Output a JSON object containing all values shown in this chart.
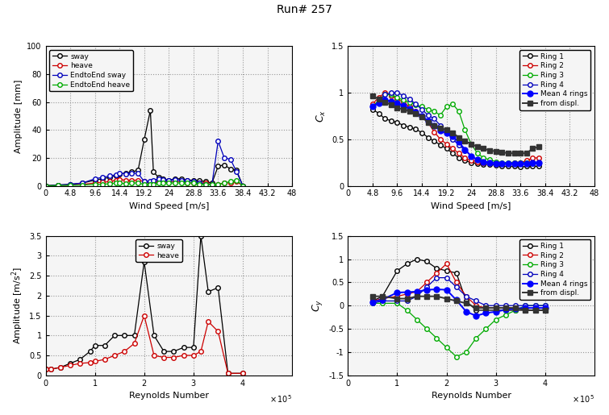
{
  "title": "Run# 257",
  "bg_color": "#f0f0f0",
  "tl": {
    "xlabel": "Wind Speed [m/s]",
    "ylabel": "Amplitude [mm]",
    "xlim": [
      0,
      48
    ],
    "ylim": [
      0,
      100
    ],
    "xticks": [
      0,
      4.8,
      9.6,
      14.4,
      19.2,
      24,
      28.8,
      33.6,
      38.4,
      43.2,
      48
    ],
    "yticks": [
      0,
      20,
      40,
      60,
      80,
      100
    ],
    "sway_ws": [
      0,
      2.4,
      4.8,
      7.2,
      9.6,
      11.0,
      12.5,
      13.8,
      14.4,
      15.6,
      16.8,
      18.0,
      19.2,
      20.4,
      21.0,
      22.0,
      22.8,
      24.0,
      25.2,
      26.4,
      27.6,
      28.8,
      30.0,
      31.2,
      32.4,
      33.6,
      34.8,
      36.0,
      37.2,
      38.4
    ],
    "sway_amp": [
      0,
      0.5,
      1.0,
      2.0,
      4.0,
      5.0,
      6.0,
      7.5,
      8.5,
      9.0,
      10.0,
      11.0,
      33.0,
      54.0,
      10.0,
      6.0,
      5.0,
      4.0,
      5.0,
      5.0,
      4.0,
      4.0,
      3.5,
      3.0,
      2.0,
      14.0,
      15.0,
      12.0,
      11.0,
      0
    ],
    "heave_ws": [
      0,
      2.4,
      4.8,
      7.2,
      9.6,
      11.0,
      12.5,
      13.8,
      14.4,
      15.6,
      16.8,
      18.0,
      19.2,
      20.4,
      21.0,
      22.0,
      22.8,
      24.0,
      25.2,
      26.4,
      27.6,
      28.8,
      30.0,
      31.2,
      32.4,
      33.6,
      34.8,
      36.0,
      37.2,
      38.4
    ],
    "heave_amp": [
      0,
      0.3,
      0.5,
      1.0,
      2.0,
      2.5,
      3.0,
      4.0,
      4.5,
      4.0,
      4.0,
      4.0,
      3.0,
      2.0,
      2.0,
      3.0,
      3.0,
      3.0,
      3.0,
      3.0,
      2.0,
      2.0,
      2.0,
      2.0,
      1.0,
      1.0,
      2.0,
      2.0,
      3.0,
      0
    ],
    "ete_sway_ws": [
      0,
      2.4,
      4.8,
      7.2,
      9.6,
      11.0,
      12.5,
      13.8,
      14.4,
      15.6,
      16.8,
      18.0,
      19.2,
      20.4,
      21.0,
      22.0,
      22.8,
      24.0,
      25.2,
      26.4,
      27.6,
      28.8,
      30.0,
      31.2,
      32.4,
      33.6,
      34.8,
      36.0,
      37.2,
      38.4
    ],
    "ete_sway_amp": [
      0,
      0.5,
      1.0,
      2.0,
      5.0,
      6.0,
      7.0,
      8.0,
      9.0,
      8.5,
      9.0,
      9.0,
      3.0,
      3.0,
      4.0,
      5.0,
      4.5,
      4.0,
      4.5,
      4.0,
      4.0,
      3.0,
      2.0,
      1.0,
      1.0,
      32.0,
      20.0,
      19.0,
      10.0,
      0
    ],
    "ete_heave_ws": [
      0,
      2.4,
      4.8,
      7.2,
      9.6,
      11.0,
      12.5,
      13.8,
      14.4,
      15.6,
      16.8,
      18.0,
      19.2,
      20.4,
      21.0,
      22.0,
      22.8,
      24.0,
      25.2,
      26.4,
      27.6,
      28.8,
      30.0,
      31.2,
      32.4,
      33.6,
      34.8,
      36.0,
      37.2,
      38.4
    ],
    "ete_heave_amp": [
      0,
      0.2,
      0.3,
      0.5,
      1.0,
      1.0,
      1.5,
      2.0,
      2.0,
      1.5,
      2.0,
      2.0,
      1.0,
      1.0,
      1.0,
      2.0,
      2.0,
      2.0,
      2.0,
      2.0,
      2.0,
      2.0,
      1.0,
      1.0,
      1.0,
      1.0,
      2.0,
      3.0,
      4.0,
      0
    ]
  },
  "tr": {
    "xlabel": "Wind Speed [m/s]",
    "ylabel": "C_x",
    "xlim": [
      0,
      48
    ],
    "ylim": [
      0,
      1.5
    ],
    "xticks": [
      0,
      4.8,
      9.6,
      14.4,
      19.2,
      24,
      28.8,
      33.6,
      38.4,
      43.2,
      48
    ],
    "yticks": [
      0,
      0.5,
      1.0,
      1.5
    ],
    "ws": [
      4.8,
      6.0,
      7.2,
      8.4,
      9.6,
      10.8,
      12.0,
      13.2,
      14.4,
      15.6,
      16.8,
      18.0,
      19.2,
      20.4,
      21.6,
      22.8,
      24.0,
      25.2,
      26.4,
      27.6,
      28.8,
      30.0,
      31.2,
      32.4,
      33.6,
      34.8,
      36.0,
      37.2
    ],
    "ring1": [
      0.82,
      0.78,
      0.72,
      0.7,
      0.68,
      0.65,
      0.63,
      0.61,
      0.57,
      0.52,
      0.48,
      0.44,
      0.4,
      0.35,
      0.3,
      0.27,
      0.25,
      0.24,
      0.23,
      0.23,
      0.22,
      0.21,
      0.21,
      0.21,
      0.2,
      0.21,
      0.21,
      0.21
    ],
    "ring2": [
      0.88,
      0.95,
      1.0,
      0.97,
      0.93,
      0.9,
      0.85,
      0.8,
      0.75,
      0.68,
      0.58,
      0.5,
      0.45,
      0.4,
      0.35,
      0.3,
      0.27,
      0.26,
      0.25,
      0.25,
      0.24,
      0.24,
      0.24,
      0.25,
      0.25,
      0.27,
      0.3,
      0.3
    ],
    "ring3": [
      0.85,
      0.92,
      0.98,
      0.98,
      0.95,
      0.92,
      0.9,
      0.87,
      0.85,
      0.82,
      0.8,
      0.76,
      0.85,
      0.88,
      0.8,
      0.6,
      0.45,
      0.35,
      0.3,
      0.28,
      0.26,
      0.25,
      0.25,
      0.25,
      0.25,
      0.25,
      0.25,
      0.25
    ],
    "ring4": [
      0.85,
      0.9,
      0.98,
      1.0,
      1.0,
      0.97,
      0.93,
      0.88,
      0.82,
      0.76,
      0.72,
      0.65,
      0.58,
      0.5,
      0.44,
      0.38,
      0.32,
      0.28,
      0.26,
      0.25,
      0.24,
      0.24,
      0.24,
      0.24,
      0.24,
      0.24,
      0.24,
      0.24
    ],
    "mean": [
      0.85,
      0.89,
      0.92,
      0.91,
      0.89,
      0.86,
      0.83,
      0.79,
      0.75,
      0.7,
      0.65,
      0.59,
      0.57,
      0.53,
      0.47,
      0.39,
      0.32,
      0.28,
      0.26,
      0.25,
      0.24,
      0.24,
      0.24,
      0.24,
      0.24,
      0.24,
      0.25,
      0.25
    ],
    "displ_ws": [
      4.8,
      6.0,
      7.2,
      8.4,
      9.6,
      10.8,
      12.0,
      13.2,
      14.4,
      15.6,
      16.8,
      18.0,
      19.2,
      20.4,
      21.6,
      22.8,
      24.0,
      25.2,
      26.4,
      27.6,
      28.8,
      30.0,
      31.2,
      32.4,
      33.6,
      34.8,
      36.0,
      37.2
    ],
    "displ": [
      0.97,
      0.93,
      0.9,
      0.87,
      0.84,
      0.82,
      0.8,
      0.78,
      0.74,
      0.68,
      0.65,
      0.62,
      0.6,
      0.57,
      0.52,
      0.48,
      0.45,
      0.42,
      0.4,
      0.38,
      0.37,
      0.36,
      0.35,
      0.35,
      0.35,
      0.35,
      0.4,
      0.42
    ]
  },
  "bl": {
    "xlabel": "Reynolds Number",
    "ylabel": "Amplitude [m/s^2]",
    "xlim": [
      0,
      500000.0
    ],
    "ylim": [
      0,
      3.5
    ],
    "xticks": [
      0,
      100000.0,
      200000.0,
      300000.0,
      400000.0
    ],
    "yticks": [
      0,
      0.5,
      1.0,
      1.5,
      2.0,
      2.5,
      3.0,
      3.5
    ],
    "sway_re": [
      0,
      10000.0,
      30000.0,
      50000.0,
      70000.0,
      90000.0,
      100000.0,
      120000.0,
      140000.0,
      160000.0,
      180000.0,
      200000.0,
      220000.0,
      240000.0,
      260000.0,
      280000.0,
      300000.0,
      315000.0,
      330000.0,
      350000.0,
      370000.0,
      400000.0
    ],
    "sway_acc": [
      0.15,
      0.15,
      0.2,
      0.3,
      0.4,
      0.6,
      0.75,
      0.75,
      1.0,
      1.0,
      1.0,
      2.85,
      1.0,
      0.6,
      0.6,
      0.7,
      0.7,
      3.5,
      2.1,
      2.2,
      0.05,
      0.05
    ],
    "heave_re": [
      0,
      10000.0,
      30000.0,
      50000.0,
      70000.0,
      90000.0,
      100000.0,
      120000.0,
      140000.0,
      160000.0,
      180000.0,
      200000.0,
      220000.0,
      240000.0,
      260000.0,
      280000.0,
      300000.0,
      315000.0,
      330000.0,
      350000.0,
      370000.0,
      400000.0
    ],
    "heave_acc": [
      0.15,
      0.15,
      0.2,
      0.25,
      0.3,
      0.32,
      0.35,
      0.4,
      0.5,
      0.6,
      0.8,
      1.5,
      0.5,
      0.45,
      0.45,
      0.5,
      0.5,
      0.6,
      1.35,
      1.1,
      0.05,
      0.05
    ]
  },
  "br": {
    "xlabel": "Reynolds Number",
    "ylabel": "C_y",
    "xlim": [
      0,
      500000.0
    ],
    "ylim": [
      -1.5,
      1.5
    ],
    "xticks": [
      0,
      100000.0,
      200000.0,
      300000.0,
      400000.0
    ],
    "yticks": [
      -1.5,
      -1.0,
      -0.5,
      0,
      0.5,
      1.0,
      1.5
    ],
    "re": [
      50000.0,
      70000.0,
      100000.0,
      120000.0,
      140000.0,
      160000.0,
      180000.0,
      200000.0,
      220000.0,
      240000.0,
      260000.0,
      280000.0,
      300000.0,
      320000.0,
      340000.0,
      360000.0,
      380000.0,
      400000.0
    ],
    "ring1": [
      0.1,
      0.2,
      0.75,
      0.9,
      1.0,
      0.95,
      0.8,
      0.75,
      0.7,
      0.1,
      -0.1,
      -0.1,
      -0.1,
      -0.1,
      -0.1,
      -0.1,
      -0.1,
      -0.1
    ],
    "ring2": [
      0.1,
      0.15,
      0.2,
      0.25,
      0.3,
      0.5,
      0.7,
      0.9,
      0.5,
      0.2,
      0.0,
      -0.05,
      -0.05,
      -0.05,
      -0.05,
      -0.1,
      -0.1,
      -0.1
    ],
    "ring3": [
      0.05,
      0.05,
      0.05,
      -0.1,
      -0.3,
      -0.5,
      -0.7,
      -0.9,
      -1.1,
      -1.0,
      -0.7,
      -0.5,
      -0.3,
      -0.2,
      -0.1,
      0.0,
      0.0,
      0.0
    ],
    "ring4": [
      0.05,
      0.1,
      0.1,
      0.1,
      0.2,
      0.4,
      0.6,
      0.6,
      0.4,
      0.2,
      0.1,
      0.0,
      0.0,
      0.0,
      0.0,
      0.0,
      0.0,
      0.0
    ],
    "mean": [
      0.08,
      0.13,
      0.28,
      0.29,
      0.3,
      0.34,
      0.35,
      0.34,
      0.12,
      -0.13,
      -0.22,
      -0.16,
      -0.13,
      -0.09,
      -0.06,
      -0.05,
      -0.05,
      -0.05
    ],
    "displ_re": [
      50000.0,
      70000.0,
      100000.0,
      120000.0,
      140000.0,
      160000.0,
      180000.0,
      200000.0,
      220000.0,
      240000.0,
      260000.0,
      280000.0,
      300000.0,
      320000.0,
      340000.0,
      360000.0,
      380000.0,
      400000.0
    ],
    "displ": [
      0.2,
      0.2,
      0.15,
      0.15,
      0.2,
      0.2,
      0.2,
      0.15,
      0.1,
      0.05,
      -0.05,
      -0.05,
      -0.05,
      -0.05,
      -0.05,
      -0.1,
      -0.1,
      -0.1
    ]
  }
}
